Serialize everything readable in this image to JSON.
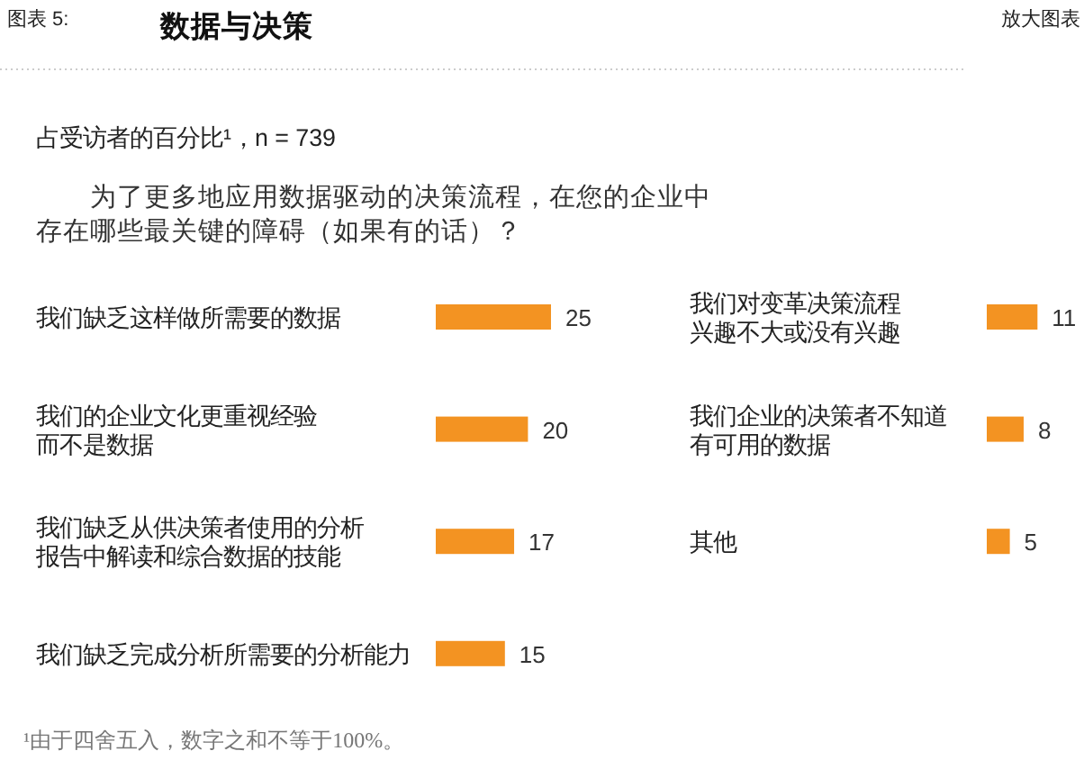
{
  "chart_data": [
    {
      "type": "bar",
      "orientation": "horizontal",
      "title": "数据与决策",
      "subtitle": "占受访者的百分比¹，n = 739",
      "annotations": [
        "图表 5:",
        "为了更多地应用数据驱动的决策流程，在您的企业中存在哪些最关键的障碍（如果有的话）？",
        "¹由于四舍五入，数字之和不等于100%。",
        "放大图表"
      ],
      "categories": [
        "我们缺乏这样做所需要的数据",
        "我们的企业文化更重视经验而不是数据",
        "我们缺乏从供决策者使用的分析报告中解读和综合数据的技能",
        "我们缺乏完成分析所需要的分析能力"
      ],
      "values": [
        25,
        20,
        17,
        15
      ],
      "color": "#f39322",
      "data_labels": true
    },
    {
      "type": "bar",
      "orientation": "horizontal",
      "categories": [
        "我们对变革决策流程兴趣不大或没有兴趣",
        "我们企业的决策者不知道有可用的数据",
        "其他"
      ],
      "values": [
        11,
        8,
        5
      ],
      "color": "#f39322",
      "data_labels": true
    }
  ]
}
